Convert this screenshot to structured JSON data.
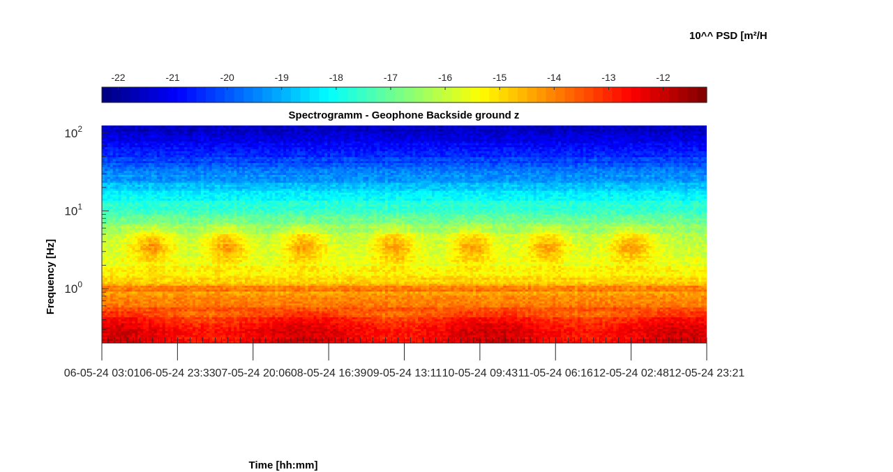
{
  "chart_data": {
    "type": "heatmap",
    "title": "Spectrogramm - Geophone Backside ground z",
    "xlabel": "Time [hh:mm]",
    "ylabel": "Frequency [Hz]",
    "colorbar_label": "10^^ PSD [m²/H",
    "colorbar_ticks": [
      -22,
      -21,
      -20,
      -19,
      -18,
      -17,
      -16,
      -15,
      -14,
      -13,
      -12
    ],
    "colorbar_range": [
      -22.3,
      -11.2
    ],
    "colormap": "jet",
    "y_scale": "log",
    "y_range": [
      0.2,
      125
    ],
    "y_ticks": [
      {
        "value": 1,
        "base": "10",
        "exp": "0"
      },
      {
        "value": 10,
        "base": "10",
        "exp": "1"
      },
      {
        "value": 100,
        "base": "10",
        "exp": "2"
      }
    ],
    "x_tick_labels": [
      "06-05-24  03:01",
      "06-05-24  23:33",
      "07-05-24  20:06",
      "08-05-24  16:39",
      "09-05-24  13:11",
      "10-05-24  09:43",
      "11-05-24  06:16",
      "12-05-24  02:48",
      "12-05-24  23:21"
    ],
    "grid": false,
    "legend": "colorbar-top",
    "activity_center_times": [
      "06-05-24 16:30",
      "07-05-24 13:00",
      "08-05-24 10:00",
      "09-05-24 10:30",
      "10-05-24 08:00",
      "11-05-24 04:00",
      "12-05-24 03:00"
    ],
    "psd_levels_by_frequency": [
      {
        "freq_hz": 100,
        "log_psd": -21.6
      },
      {
        "freq_hz": 50,
        "log_psd": -20.4
      },
      {
        "freq_hz": 25,
        "log_psd": -19.2
      },
      {
        "freq_hz": 10,
        "log_psd": -17.4
      },
      {
        "freq_hz": 5,
        "log_psd": -16.2
      },
      {
        "freq_hz": 2,
        "log_psd": -15.6
      },
      {
        "freq_hz": 1,
        "log_psd": -14.6
      },
      {
        "freq_hz": 0.5,
        "log_psd": -13.4
      },
      {
        "freq_hz": 0.3,
        "log_psd": -12.6
      },
      {
        "freq_hz": 0.2,
        "log_psd": -12.4
      }
    ]
  }
}
